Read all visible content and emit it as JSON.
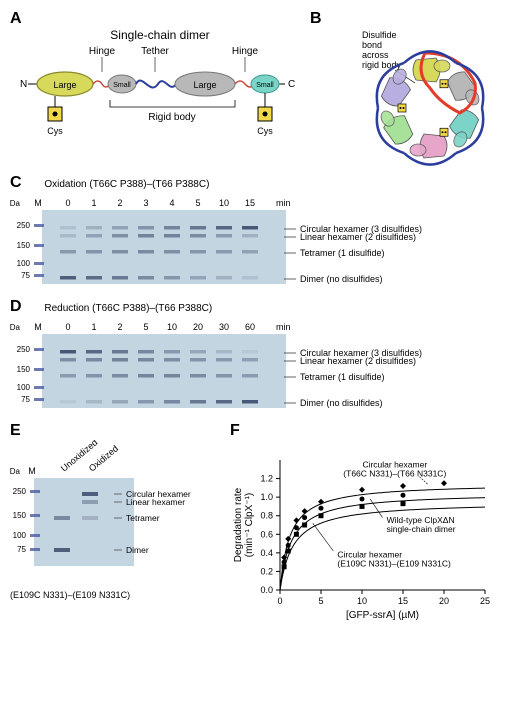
{
  "panelA": {
    "label": "A",
    "title": "Single-chain dimer",
    "annotations": {
      "hinge1": "Hinge",
      "tether": "Tether",
      "hinge2": "Hinge",
      "n_term": "N",
      "c_term": "C",
      "cys1": "Cys",
      "cys2": "Cys",
      "large1": "Large",
      "small1": "Small",
      "large2": "Large",
      "small2": "Small",
      "rigid_body": "Rigid body"
    },
    "colors": {
      "large1_fill": "#d7d95a",
      "large1_stroke": "#8a8a2a",
      "small1_fill": "#b8b8b8",
      "large2_fill": "#b8b8b8",
      "small2_fill": "#7cd4c8",
      "tether_color": "#2b3e9e",
      "hinge_color": "#c84a3a"
    }
  },
  "panelB": {
    "label": "B",
    "annotation": "Disulfide\nbond\nacross\nrigid body",
    "subunit_colors": [
      "#d7d95a",
      "#b8b8b8",
      "#7cd4c8",
      "#e7a6c9",
      "#a8e29a",
      "#b8aee0"
    ],
    "tether_color": "#2b3e9e",
    "highlight_stroke": "#e43b2a",
    "disulfide_color": "#f2d94a"
  },
  "panelC": {
    "label": "C",
    "title": "Oxidation (T66C P388)–(T66 P388C)",
    "marker_label": "M",
    "timepoints": [
      "0",
      "1",
      "2",
      "3",
      "4",
      "5",
      "10",
      "15"
    ],
    "time_unit": "min",
    "kda_label": "kDa",
    "markers": [
      "250",
      "150",
      "100",
      "75"
    ],
    "band_labels": [
      "Circular hexamer (3 disulfides)",
      "Linear hexamer (2 disulfides)",
      "Tetramer (1 disulfide)",
      "Dimer (no disulfides)"
    ],
    "gel_bg": "#c4d5e2",
    "band_color": "#3a4a6a",
    "marker_color": "#4a5aa0"
  },
  "panelD": {
    "label": "D",
    "title": "Reduction (T66C P388)–(T66 P388C)",
    "marker_label": "M",
    "timepoints": [
      "0",
      "1",
      "2",
      "5",
      "10",
      "20",
      "30",
      "60"
    ],
    "time_unit": "min",
    "kda_label": "kDa",
    "markers": [
      "250",
      "150",
      "100",
      "75"
    ],
    "band_labels": [
      "Circular hexamer (3 disulfides)",
      "Linear hexamer (2 disulfides)",
      "Tetramer (1 disulfide)",
      "Dimer (no disulfides)"
    ],
    "gel_bg": "#c4d5e2",
    "band_color": "#3a4a6a",
    "marker_color": "#4a5aa0"
  },
  "panelE": {
    "label": "E",
    "marker_label": "M",
    "lane_labels": [
      "Unoxidized",
      "Oxidized"
    ],
    "kda_label": "kDa",
    "markers": [
      "250",
      "150",
      "100",
      "75"
    ],
    "band_labels": [
      "Circular hexamer",
      "Linear hexamer",
      "Tetramer",
      "Dimer"
    ],
    "caption": "(E109C N331)–(E109 N331C)",
    "gel_bg": "#c4d5e2",
    "band_color": "#3a4a6a",
    "marker_color": "#4a5aa0"
  },
  "panelF": {
    "label": "F",
    "xlabel": "[GFP-ssrA] (µM)",
    "ylabel": "Degradation rate\n(min⁻¹ ClpX⁻¹)",
    "xlim": [
      0,
      25
    ],
    "ylim": [
      0,
      1.4
    ],
    "xticks": [
      0,
      5,
      10,
      15,
      20,
      25
    ],
    "yticks": [
      0,
      0.2,
      0.4,
      0.6,
      0.8,
      1.0,
      1.2
    ],
    "curve_labels": {
      "top": "Circular hexamer\n(T66C N331)–(T66 N331C)",
      "mid": "Wild-type ClpXΔN\nsingle-chain dimer",
      "bot": "Circular hexamer\n(E109C N331)–(E109 N331C)"
    },
    "series": [
      {
        "Km": 1.2,
        "Vmax": 1.15,
        "marker": "diamond"
      },
      {
        "Km": 1.4,
        "Vmax": 1.05,
        "marker": "circle"
      },
      {
        "Km": 1.6,
        "Vmax": 0.95,
        "marker": "square"
      }
    ],
    "data_points": {
      "diamond": [
        [
          0.5,
          0.35
        ],
        [
          1,
          0.55
        ],
        [
          2,
          0.75
        ],
        [
          3,
          0.85
        ],
        [
          5,
          0.95
        ],
        [
          10,
          1.08
        ],
        [
          15,
          1.12
        ],
        [
          20,
          1.15
        ]
      ],
      "circle": [
        [
          0.5,
          0.3
        ],
        [
          1,
          0.48
        ],
        [
          2,
          0.67
        ],
        [
          3,
          0.78
        ],
        [
          5,
          0.88
        ],
        [
          10,
          0.98
        ],
        [
          15,
          1.02
        ]
      ],
      "square": [
        [
          0.5,
          0.25
        ],
        [
          1,
          0.42
        ],
        [
          2,
          0.6
        ],
        [
          3,
          0.7
        ],
        [
          5,
          0.8
        ],
        [
          10,
          0.9
        ],
        [
          15,
          0.93
        ]
      ]
    },
    "axis_color": "#000000",
    "line_color": "#000000",
    "marker_fill": "#000000"
  }
}
